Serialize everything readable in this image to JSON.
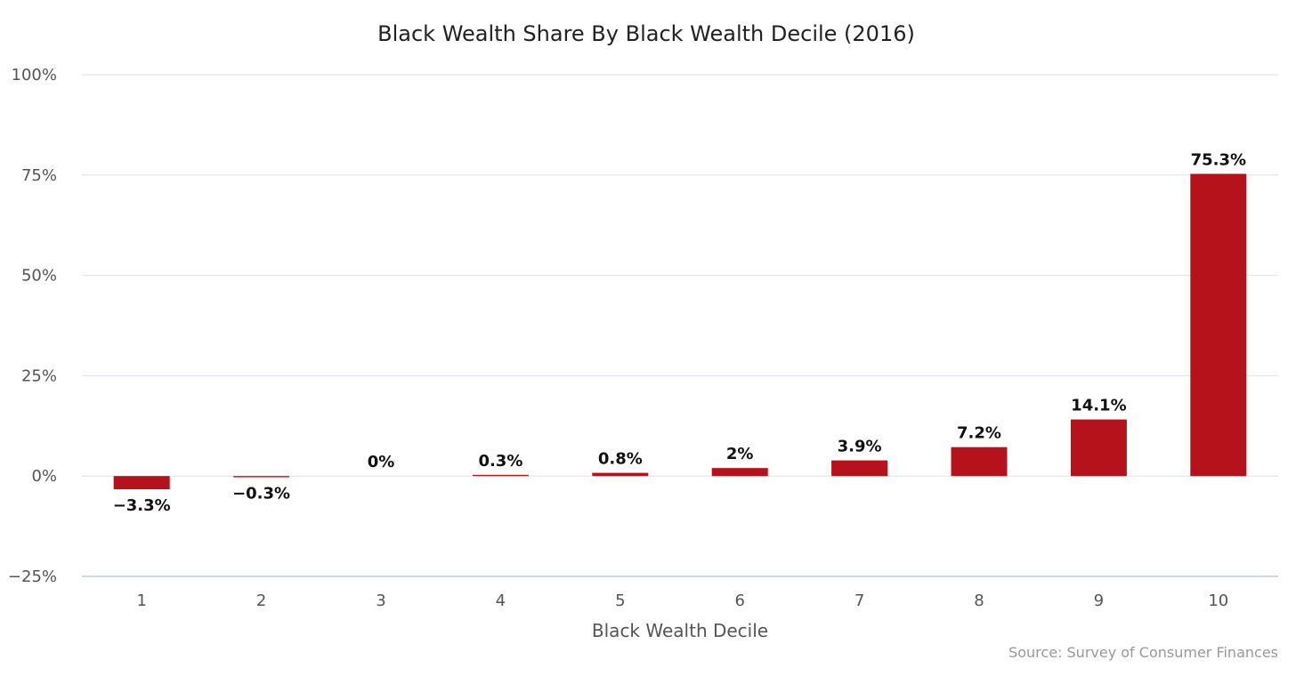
{
  "chart_data": {
    "type": "bar",
    "title": "Black Wealth Share By Black Wealth Decile (2016)",
    "xlabel": "Black Wealth Decile",
    "ylabel": "",
    "categories": [
      "1",
      "2",
      "3",
      "4",
      "5",
      "6",
      "7",
      "8",
      "9",
      "10"
    ],
    "values": [
      -3.3,
      -0.3,
      0,
      0.3,
      0.8,
      2,
      3.9,
      7.2,
      14.1,
      75.3
    ],
    "data_labels": [
      "−3.3%",
      "−0.3%",
      "0%",
      "0.3%",
      "0.8%",
      "2%",
      "3.9%",
      "7.2%",
      "14.1%",
      "75.3%"
    ],
    "ylim": [
      -25,
      100
    ],
    "yticks": [
      -25,
      0,
      25,
      50,
      75,
      100
    ],
    "ytick_labels": [
      "−25%",
      "0%",
      "25%",
      "50%",
      "75%",
      "100%"
    ],
    "grid": true,
    "legend": "none",
    "bar_color": "#b5121b",
    "source": "Source: Survey of Consumer Finances"
  }
}
